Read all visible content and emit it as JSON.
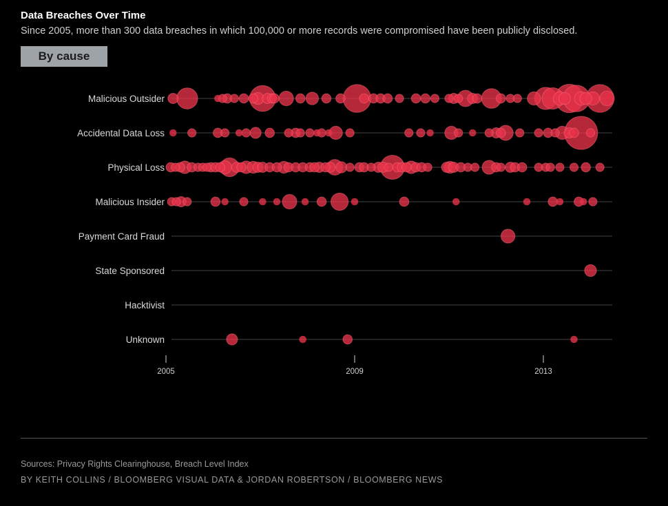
{
  "header": {
    "title": "Data Breaches Over Time",
    "subtitle": "Since 2005, more than 300 data breaches in which 100,000 or more records were compromised have been publicly disclosed.",
    "view_button": "By cause"
  },
  "footer": {
    "sources": "Sources: Privacy Rights Clearinghouse, Breach Level Index",
    "byline": "BY KEITH COLLINS / BLOOMBERG VISUAL DATA & JORDAN ROBERTSON / BLOOMBERG NEWS"
  },
  "colors": {
    "bubble": "#e8334a",
    "bubble_stroke": "#ff6a7a",
    "row_line": "#444444",
    "label": "#d9d9d9",
    "axis": "#cfcfcf"
  },
  "chart_data": {
    "type": "scatter",
    "title": "Data Breaches Over Time",
    "encoding": "bubble size = records compromised (relative size, 0-100 scale)",
    "x_axis": {
      "range": [
        2005.0,
        2014.4
      ],
      "ticks": [
        {
          "value": 2005,
          "label": "2005"
        },
        {
          "value": 2009,
          "label": "2009"
        },
        {
          "value": 2013,
          "label": "2013"
        }
      ]
    },
    "categories": [
      "Malicious Outsider",
      "Accidental Data Loss",
      "Physical Loss",
      "Malicious Insider",
      "Payment Card Fraud",
      "State Sponsored",
      "Hacktivist",
      "Unknown"
    ],
    "series": [
      {
        "name": "Malicious Outsider",
        "points": [
          {
            "x": 2005.15,
            "size": 6
          },
          {
            "x": 2005.45,
            "size": 25
          },
          {
            "x": 2006.1,
            "size": 3
          },
          {
            "x": 2006.2,
            "size": 4
          },
          {
            "x": 2006.3,
            "size": 5
          },
          {
            "x": 2006.45,
            "size": 4
          },
          {
            "x": 2006.65,
            "size": 5
          },
          {
            "x": 2006.85,
            "size": 5
          },
          {
            "x": 2006.95,
            "size": 8
          },
          {
            "x": 2007.05,
            "size": 38
          },
          {
            "x": 2007.15,
            "size": 6
          },
          {
            "x": 2007.25,
            "size": 5
          },
          {
            "x": 2007.3,
            "size": 5
          },
          {
            "x": 2007.55,
            "size": 12
          },
          {
            "x": 2007.85,
            "size": 5
          },
          {
            "x": 2008.1,
            "size": 9
          },
          {
            "x": 2008.4,
            "size": 5
          },
          {
            "x": 2008.7,
            "size": 5
          },
          {
            "x": 2009.05,
            "size": 44
          },
          {
            "x": 2009.2,
            "size": 5
          },
          {
            "x": 2009.4,
            "size": 5
          },
          {
            "x": 2009.55,
            "size": 5
          },
          {
            "x": 2009.7,
            "size": 5
          },
          {
            "x": 2009.95,
            "size": 4
          },
          {
            "x": 2010.3,
            "size": 5
          },
          {
            "x": 2010.5,
            "size": 5
          },
          {
            "x": 2010.7,
            "size": 4
          },
          {
            "x": 2011.0,
            "size": 4
          },
          {
            "x": 2011.1,
            "size": 6
          },
          {
            "x": 2011.2,
            "size": 4
          },
          {
            "x": 2011.35,
            "size": 15
          },
          {
            "x": 2011.5,
            "size": 6
          },
          {
            "x": 2011.6,
            "size": 5
          },
          {
            "x": 2011.9,
            "size": 22
          },
          {
            "x": 2012.1,
            "size": 5
          },
          {
            "x": 2012.3,
            "size": 4
          },
          {
            "x": 2012.45,
            "size": 4
          },
          {
            "x": 2012.8,
            "size": 10
          },
          {
            "x": 2013.05,
            "size": 28
          },
          {
            "x": 2013.2,
            "size": 26
          },
          {
            "x": 2013.35,
            "size": 10
          },
          {
            "x": 2013.45,
            "size": 8
          },
          {
            "x": 2013.55,
            "size": 46
          },
          {
            "x": 2013.7,
            "size": 40
          },
          {
            "x": 2013.8,
            "size": 10
          },
          {
            "x": 2013.9,
            "size": 8
          },
          {
            "x": 2014.05,
            "size": 10
          },
          {
            "x": 2014.2,
            "size": 44
          },
          {
            "x": 2014.35,
            "size": 12
          }
        ]
      },
      {
        "name": "Accidental Data Loss",
        "points": [
          {
            "x": 2005.15,
            "size": 3
          },
          {
            "x": 2005.55,
            "size": 4
          },
          {
            "x": 2006.1,
            "size": 5
          },
          {
            "x": 2006.25,
            "size": 4
          },
          {
            "x": 2006.55,
            "size": 3
          },
          {
            "x": 2006.7,
            "size": 4
          },
          {
            "x": 2006.9,
            "size": 7
          },
          {
            "x": 2007.2,
            "size": 5
          },
          {
            "x": 2007.6,
            "size": 4
          },
          {
            "x": 2007.75,
            "size": 5
          },
          {
            "x": 2007.85,
            "size": 4
          },
          {
            "x": 2008.05,
            "size": 4
          },
          {
            "x": 2008.2,
            "size": 3
          },
          {
            "x": 2008.3,
            "size": 4
          },
          {
            "x": 2008.45,
            "size": 3
          },
          {
            "x": 2008.6,
            "size": 10
          },
          {
            "x": 2008.9,
            "size": 4
          },
          {
            "x": 2010.15,
            "size": 4
          },
          {
            "x": 2010.4,
            "size": 4
          },
          {
            "x": 2010.6,
            "size": 3
          },
          {
            "x": 2011.05,
            "size": 10
          },
          {
            "x": 2011.2,
            "size": 4
          },
          {
            "x": 2011.5,
            "size": 3
          },
          {
            "x": 2011.85,
            "size": 4
          },
          {
            "x": 2012.0,
            "size": 6
          },
          {
            "x": 2012.1,
            "size": 5
          },
          {
            "x": 2012.2,
            "size": 13
          },
          {
            "x": 2012.5,
            "size": 4
          },
          {
            "x": 2012.9,
            "size": 4
          },
          {
            "x": 2013.1,
            "size": 5
          },
          {
            "x": 2013.25,
            "size": 4
          },
          {
            "x": 2013.4,
            "size": 10
          },
          {
            "x": 2013.55,
            "size": 6
          },
          {
            "x": 2013.65,
            "size": 5
          },
          {
            "x": 2013.8,
            "size": 62
          },
          {
            "x": 2014.0,
            "size": 4
          }
        ]
      },
      {
        "name": "Physical Loss",
        "points": [
          {
            "x": 2005.1,
            "size": 5
          },
          {
            "x": 2005.2,
            "size": 4
          },
          {
            "x": 2005.3,
            "size": 5
          },
          {
            "x": 2005.4,
            "size": 9
          },
          {
            "x": 2005.55,
            "size": 5
          },
          {
            "x": 2005.68,
            "size": 4
          },
          {
            "x": 2005.78,
            "size": 4
          },
          {
            "x": 2005.87,
            "size": 4
          },
          {
            "x": 2005.95,
            "size": 5
          },
          {
            "x": 2006.05,
            "size": 5
          },
          {
            "x": 2006.15,
            "size": 5
          },
          {
            "x": 2006.25,
            "size": 10
          },
          {
            "x": 2006.35,
            "size": 20
          },
          {
            "x": 2006.5,
            "size": 6
          },
          {
            "x": 2006.6,
            "size": 5
          },
          {
            "x": 2006.7,
            "size": 9
          },
          {
            "x": 2006.85,
            "size": 8
          },
          {
            "x": 2006.95,
            "size": 6
          },
          {
            "x": 2007.05,
            "size": 6
          },
          {
            "x": 2007.2,
            "size": 5
          },
          {
            "x": 2007.35,
            "size": 5
          },
          {
            "x": 2007.5,
            "size": 8
          },
          {
            "x": 2007.6,
            "size": 5
          },
          {
            "x": 2007.75,
            "size": 5
          },
          {
            "x": 2007.9,
            "size": 5
          },
          {
            "x": 2008.05,
            "size": 5
          },
          {
            "x": 2008.15,
            "size": 5
          },
          {
            "x": 2008.25,
            "size": 6
          },
          {
            "x": 2008.38,
            "size": 5
          },
          {
            "x": 2008.48,
            "size": 6
          },
          {
            "x": 2008.58,
            "size": 14
          },
          {
            "x": 2008.72,
            "size": 7
          },
          {
            "x": 2008.9,
            "size": 4
          },
          {
            "x": 2009.1,
            "size": 5
          },
          {
            "x": 2009.2,
            "size": 5
          },
          {
            "x": 2009.35,
            "size": 4
          },
          {
            "x": 2009.5,
            "size": 6
          },
          {
            "x": 2009.6,
            "size": 6
          },
          {
            "x": 2009.72,
            "size": 4
          },
          {
            "x": 2009.8,
            "size": 33
          },
          {
            "x": 2009.9,
            "size": 5
          },
          {
            "x": 2010.0,
            "size": 5
          },
          {
            "x": 2010.1,
            "size": 5
          },
          {
            "x": 2010.2,
            "size": 9
          },
          {
            "x": 2010.3,
            "size": 5
          },
          {
            "x": 2010.42,
            "size": 5
          },
          {
            "x": 2010.55,
            "size": 4
          },
          {
            "x": 2010.95,
            "size": 6
          },
          {
            "x": 2011.02,
            "size": 8
          },
          {
            "x": 2011.1,
            "size": 6
          },
          {
            "x": 2011.25,
            "size": 5
          },
          {
            "x": 2011.4,
            "size": 4
          },
          {
            "x": 2011.55,
            "size": 4
          },
          {
            "x": 2011.85,
            "size": 11
          },
          {
            "x": 2012.0,
            "size": 5
          },
          {
            "x": 2012.1,
            "size": 4
          },
          {
            "x": 2012.3,
            "size": 6
          },
          {
            "x": 2012.4,
            "size": 5
          },
          {
            "x": 2012.55,
            "size": 5
          },
          {
            "x": 2012.9,
            "size": 4
          },
          {
            "x": 2013.05,
            "size": 4
          },
          {
            "x": 2013.15,
            "size": 4
          },
          {
            "x": 2013.35,
            "size": 4
          },
          {
            "x": 2013.65,
            "size": 4
          },
          {
            "x": 2013.9,
            "size": 5
          },
          {
            "x": 2014.2,
            "size": 4
          }
        ]
      },
      {
        "name": "Malicious Insider",
        "points": [
          {
            "x": 2005.12,
            "size": 4
          },
          {
            "x": 2005.22,
            "size": 4
          },
          {
            "x": 2005.32,
            "size": 6
          },
          {
            "x": 2005.45,
            "size": 4
          },
          {
            "x": 2006.05,
            "size": 5
          },
          {
            "x": 2006.25,
            "size": 3
          },
          {
            "x": 2006.65,
            "size": 4
          },
          {
            "x": 2007.05,
            "size": 3
          },
          {
            "x": 2007.35,
            "size": 3
          },
          {
            "x": 2007.62,
            "size": 12
          },
          {
            "x": 2007.95,
            "size": 3
          },
          {
            "x": 2008.3,
            "size": 5
          },
          {
            "x": 2008.68,
            "size": 17
          },
          {
            "x": 2009.0,
            "size": 3
          },
          {
            "x": 2010.05,
            "size": 5
          },
          {
            "x": 2011.15,
            "size": 3
          },
          {
            "x": 2012.65,
            "size": 3
          },
          {
            "x": 2013.2,
            "size": 5
          },
          {
            "x": 2013.35,
            "size": 3
          },
          {
            "x": 2013.75,
            "size": 5
          },
          {
            "x": 2013.85,
            "size": 3
          },
          {
            "x": 2014.05,
            "size": 4
          }
        ]
      },
      {
        "name": "Payment Card Fraud",
        "points": [
          {
            "x": 2012.25,
            "size": 11
          }
        ]
      },
      {
        "name": "State Sponsored",
        "points": [
          {
            "x": 2014.0,
            "size": 8
          }
        ]
      },
      {
        "name": "Hacktivist",
        "points": []
      },
      {
        "name": "Unknown",
        "points": [
          {
            "x": 2006.4,
            "size": 7
          },
          {
            "x": 2007.9,
            "size": 3
          },
          {
            "x": 2008.85,
            "size": 5
          },
          {
            "x": 2013.65,
            "size": 3
          }
        ]
      }
    ]
  }
}
